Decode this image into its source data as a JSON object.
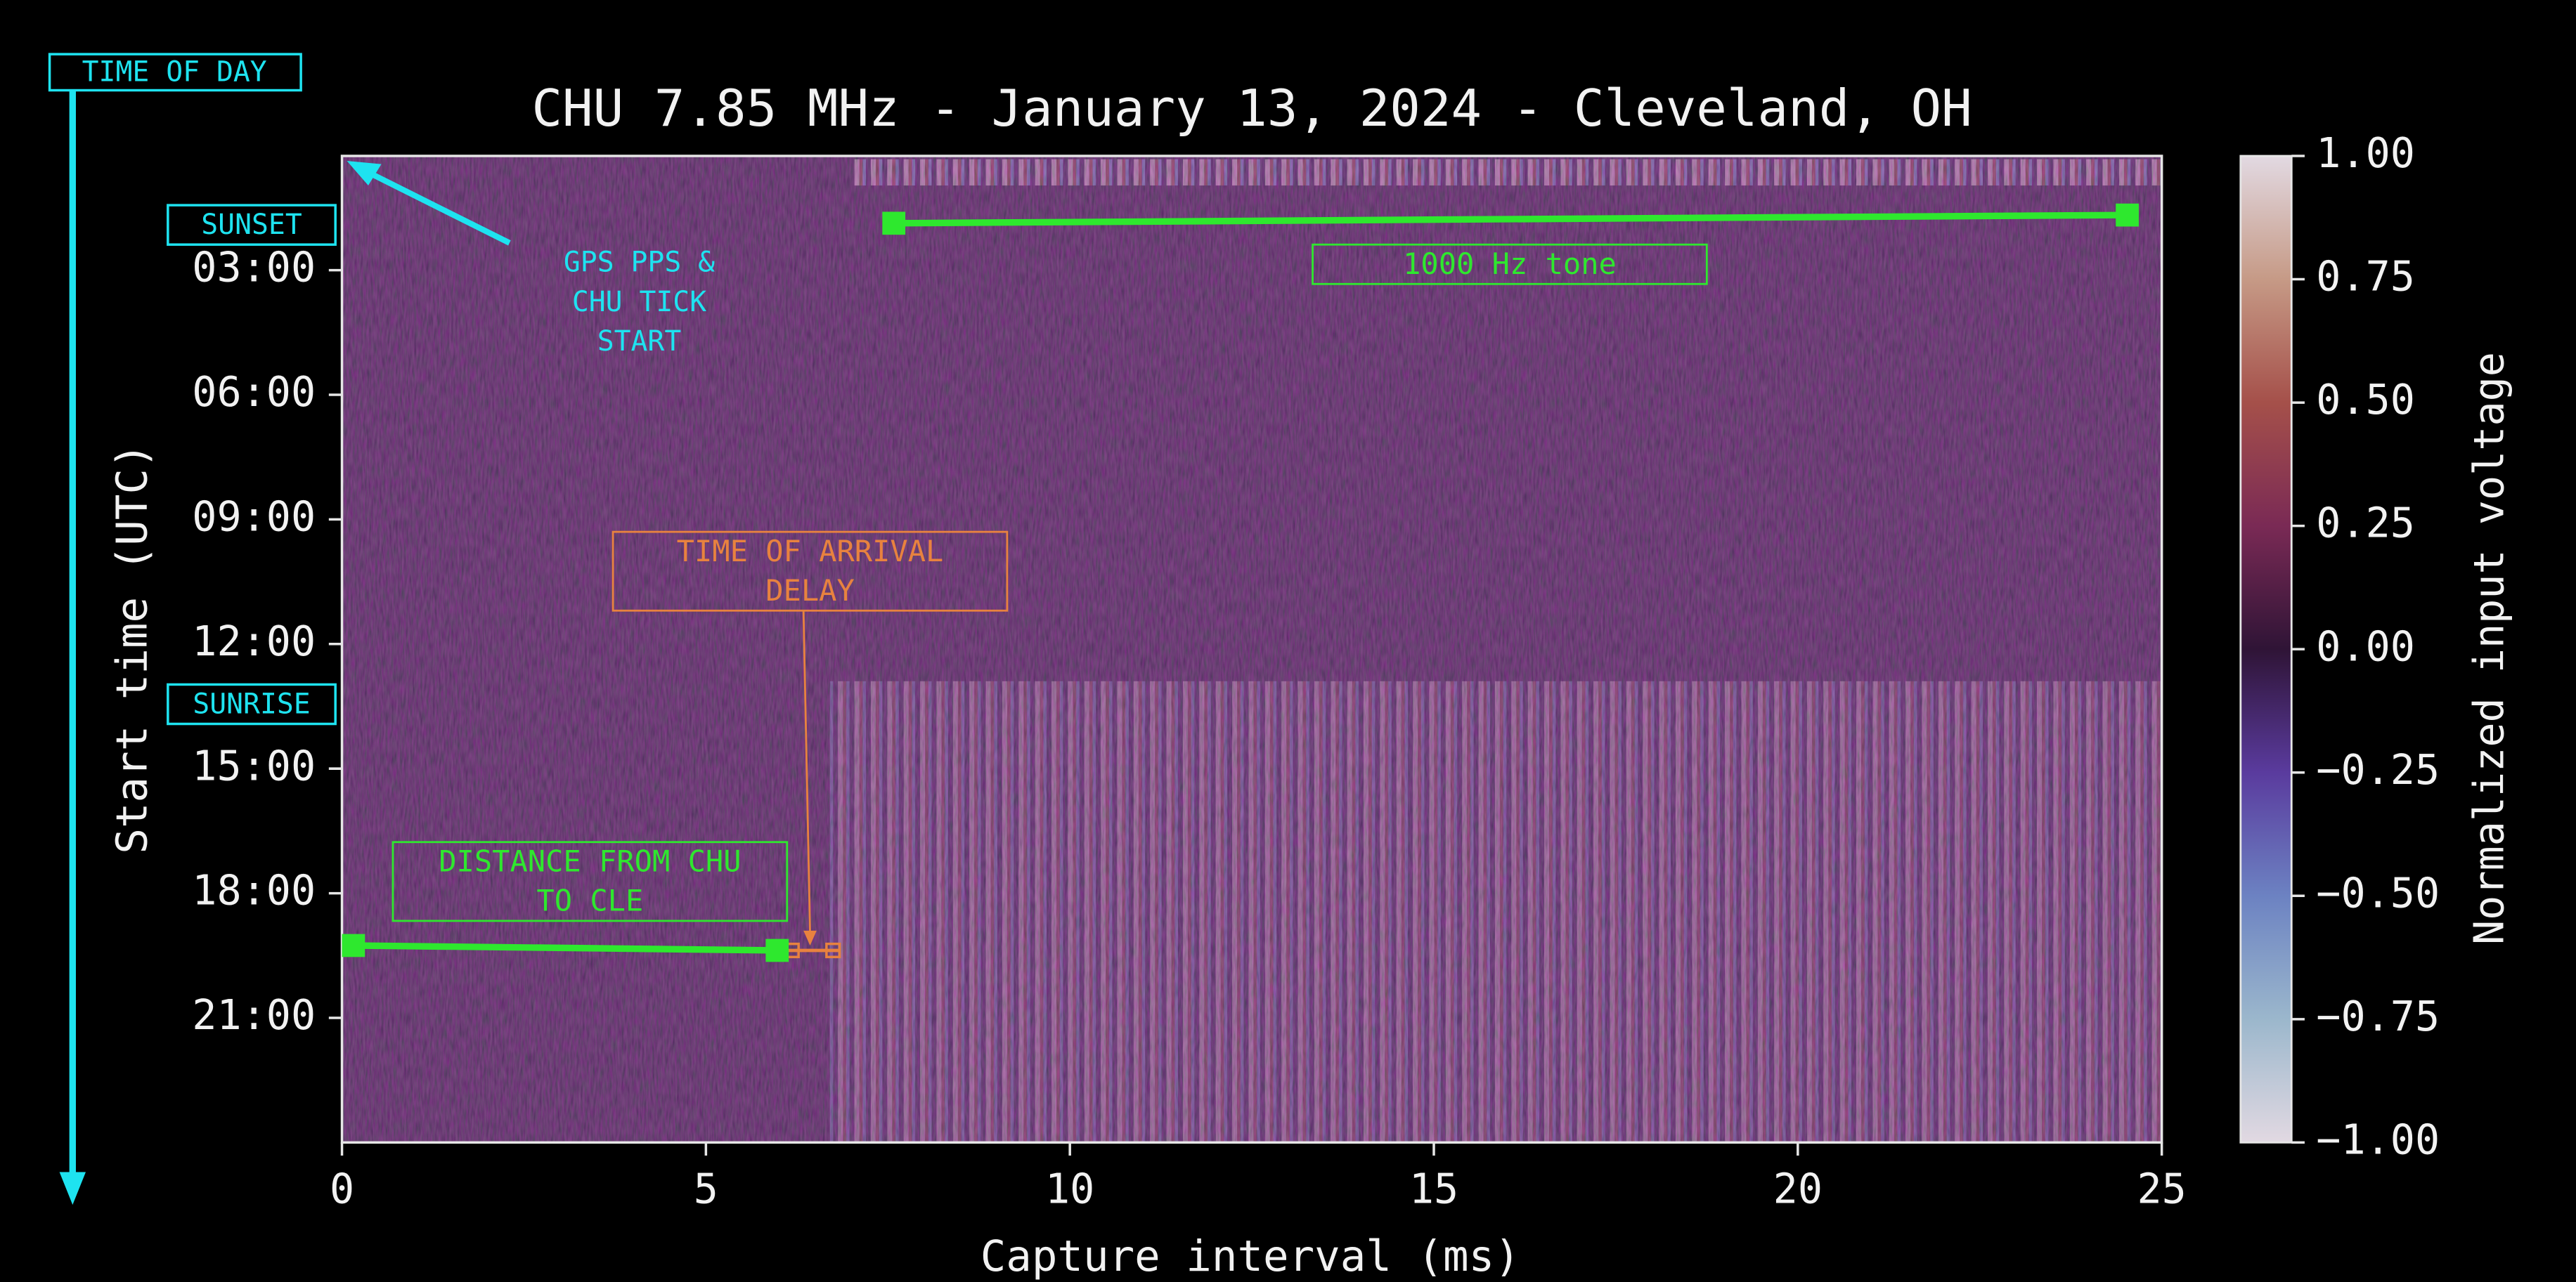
{
  "chart_data": {
    "type": "heatmap",
    "title": "CHU 7.85 MHz - January 13, 2024 - Cleveland, OH",
    "x_label": "Capture interval (ms)",
    "y_label": "Start time (UTC)",
    "colorbar_label": "Normalized input voltage",
    "xlim": [
      0,
      25
    ],
    "xticks": [
      0,
      5,
      10,
      15,
      20,
      25
    ],
    "ylim": [
      0.25,
      24
    ],
    "y_inverted": true,
    "yticks": [
      {
        "value": 3,
        "label": "03:00"
      },
      {
        "value": 6,
        "label": "06:00"
      },
      {
        "value": 9,
        "label": "09:00"
      },
      {
        "value": 12,
        "label": "12:00"
      },
      {
        "value": 15,
        "label": "15:00"
      },
      {
        "value": 18,
        "label": "18:00"
      },
      {
        "value": 21,
        "label": "21:00"
      }
    ],
    "clim": [
      -1,
      1
    ],
    "cticks": [
      {
        "value": 1,
        "label": "1.00"
      },
      {
        "value": 0.75,
        "label": "0.75"
      },
      {
        "value": 0.5,
        "label": "0.50"
      },
      {
        "value": 0.25,
        "label": "0.25"
      },
      {
        "value": 0,
        "label": "0.00"
      },
      {
        "value": -0.25,
        "label": "−0.25"
      },
      {
        "value": -0.5,
        "label": "−0.50"
      },
      {
        "value": -0.75,
        "label": "−0.75"
      },
      {
        "value": -1,
        "label": "−1.00"
      }
    ],
    "annotations": [
      {
        "lines": [
          "TIME OF DAY"
        ]
      },
      {
        "lines": [
          "SUNSET"
        ]
      },
      {
        "lines": [
          "SUNRISE"
        ]
      },
      {
        "lines": [
          "GPS PPS &",
          "CHU TICK",
          "START"
        ]
      },
      {
        "lines": [
          "1000 Hz tone"
        ]
      },
      {
        "lines": [
          "TIME OF ARRIVAL",
          "DELAY"
        ]
      },
      {
        "lines": [
          "DISTANCE FROM CHU",
          "TO CLE"
        ]
      }
    ]
  }
}
